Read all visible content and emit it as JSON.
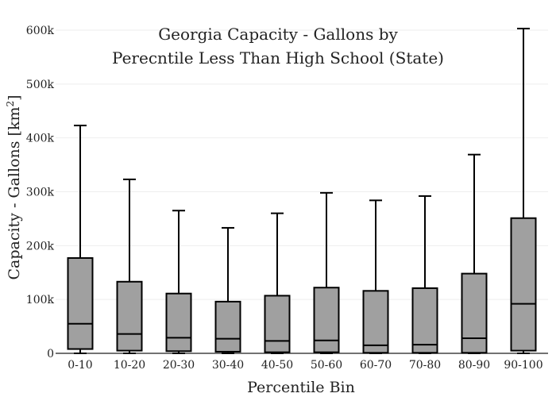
{
  "chart_data": {
    "type": "box",
    "title_lines": [
      "Georgia Capacity - Gallons by",
      "Perecntile Less Than High School (State)"
    ],
    "xlabel": "Percentile Bin",
    "ylabel_main": "Capacity - Gallons  [km",
    "ylabel_sup": "2",
    "ylabel_tail": "]",
    "ylim": [
      0,
      620000
    ],
    "y_ticks": [
      0,
      100000,
      200000,
      300000,
      400000,
      500000,
      600000
    ],
    "y_tick_labels": [
      "0",
      "100k",
      "200k",
      "300k",
      "400k",
      "500k",
      "600k"
    ],
    "grid": true,
    "categories": [
      "0-10",
      "10-20",
      "20-30",
      "30-40",
      "40-50",
      "50-60",
      "60-70",
      "70-80",
      "80-90",
      "90-100"
    ],
    "boxes": [
      {
        "min": 0,
        "q1": 8000,
        "median": 55000,
        "q3": 177000,
        "max": 423000
      },
      {
        "min": 0,
        "q1": 5000,
        "median": 36000,
        "q3": 133000,
        "max": 323000
      },
      {
        "min": 0,
        "q1": 4000,
        "median": 29000,
        "q3": 111000,
        "max": 265000
      },
      {
        "min": 0,
        "q1": 3000,
        "median": 27000,
        "q3": 96000,
        "max": 233000
      },
      {
        "min": 0,
        "q1": 2000,
        "median": 23000,
        "q3": 107000,
        "max": 260000
      },
      {
        "min": 0,
        "q1": 2000,
        "median": 24000,
        "q3": 122000,
        "max": 298000
      },
      {
        "min": 0,
        "q1": 1000,
        "median": 15000,
        "q3": 116000,
        "max": 284000
      },
      {
        "min": 0,
        "q1": 1000,
        "median": 16000,
        "q3": 121000,
        "max": 292000
      },
      {
        "min": 0,
        "q1": 1000,
        "median": 28000,
        "q3": 148000,
        "max": 369000
      },
      {
        "min": 0,
        "q1": 5000,
        "median": 92000,
        "q3": 251000,
        "max": 603000
      }
    ],
    "colors": {
      "box_fill": "#a0a0a0",
      "box_stroke": "#000000",
      "grid": "#eeeeee"
    }
  }
}
